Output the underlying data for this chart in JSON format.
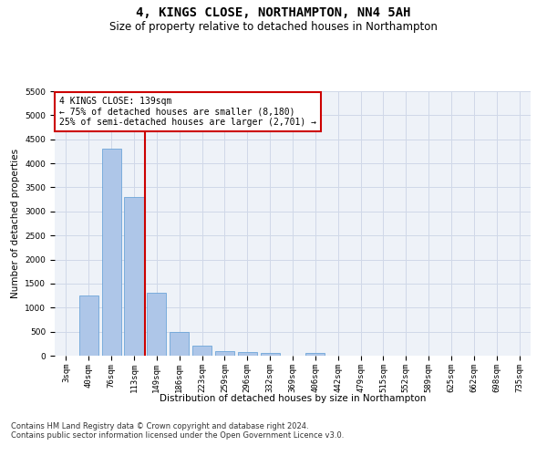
{
  "title": "4, KINGS CLOSE, NORTHAMPTON, NN4 5AH",
  "subtitle": "Size of property relative to detached houses in Northampton",
  "xlabel": "Distribution of detached houses by size in Northampton",
  "ylabel": "Number of detached properties",
  "footnote1": "Contains HM Land Registry data © Crown copyright and database right 2024.",
  "footnote2": "Contains public sector information licensed under the Open Government Licence v3.0.",
  "categories": [
    "3sqm",
    "40sqm",
    "76sqm",
    "113sqm",
    "149sqm",
    "186sqm",
    "223sqm",
    "259sqm",
    "296sqm",
    "332sqm",
    "369sqm",
    "406sqm",
    "442sqm",
    "479sqm",
    "515sqm",
    "552sqm",
    "589sqm",
    "625sqm",
    "662sqm",
    "698sqm",
    "735sqm"
  ],
  "values": [
    0,
    1250,
    4300,
    3300,
    1300,
    500,
    200,
    100,
    75,
    60,
    0,
    60,
    0,
    0,
    0,
    0,
    0,
    0,
    0,
    0,
    0
  ],
  "bar_color": "#aec6e8",
  "bar_edge_color": "#5b9bd5",
  "ylim": [
    0,
    5500
  ],
  "yticks": [
    0,
    500,
    1000,
    1500,
    2000,
    2500,
    3000,
    3500,
    4000,
    4500,
    5000,
    5500
  ],
  "red_line_color": "#cc0000",
  "annotation_box_text": "4 KINGS CLOSE: 139sqm\n← 75% of detached houses are smaller (8,180)\n25% of semi-detached houses are larger (2,701) →",
  "annotation_box_color": "#ffffff",
  "annotation_box_edge_color": "#cc0000",
  "grid_color": "#d0d8e8",
  "background_color": "#eef2f8",
  "title_fontsize": 10,
  "subtitle_fontsize": 8.5,
  "annotation_fontsize": 7,
  "axis_label_fontsize": 7.5,
  "tick_fontsize": 6.5,
  "footnote_fontsize": 6
}
